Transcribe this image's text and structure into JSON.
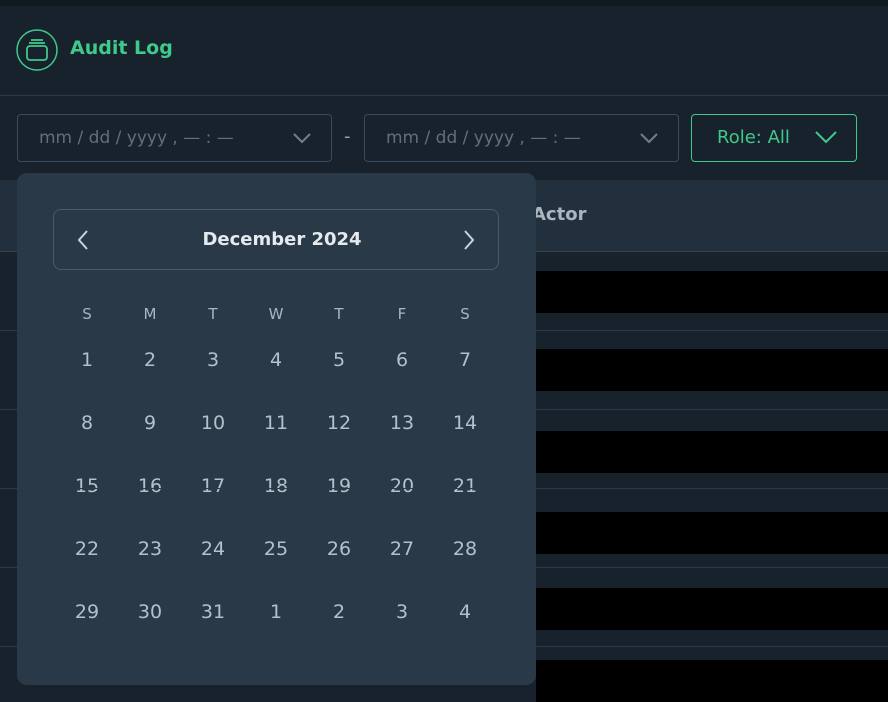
{
  "header": {
    "title": "Audit Log"
  },
  "filters": {
    "start_placeholder": "mm / dd / yyyy , — : —",
    "separator": "-",
    "end_placeholder": "mm / dd / yyyy , — : —",
    "role_button": "Role: All"
  },
  "table": {
    "columns": [
      "Actor"
    ]
  },
  "calendar": {
    "month_label": "December 2024",
    "weekdays": [
      "S",
      "M",
      "T",
      "W",
      "T",
      "F",
      "S"
    ],
    "weeks": [
      [
        "1",
        "2",
        "3",
        "4",
        "5",
        "6",
        "7"
      ],
      [
        "8",
        "9",
        "10",
        "11",
        "12",
        "13",
        "14"
      ],
      [
        "15",
        "16",
        "17",
        "18",
        "19",
        "20",
        "21"
      ],
      [
        "22",
        "23",
        "24",
        "25",
        "26",
        "27",
        "28"
      ],
      [
        "29",
        "30",
        "31",
        "1",
        "2",
        "3",
        "4"
      ]
    ]
  }
}
